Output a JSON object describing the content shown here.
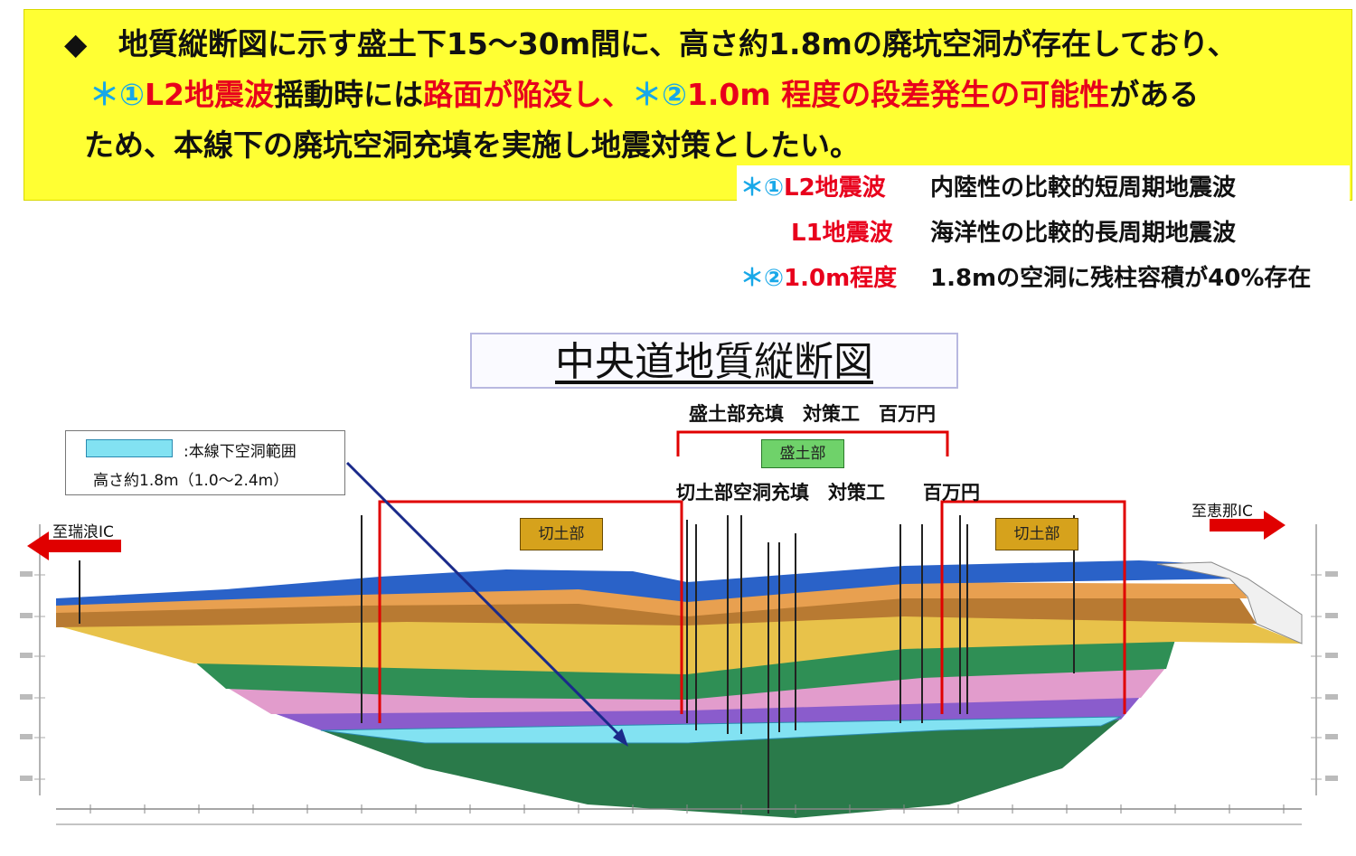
{
  "banner": {
    "bullet": "◆",
    "line1": "地質縦断図に示す盛土下15～30m間に、高さ約1.8mの廃坑空洞が存在しており、",
    "line2_mark1": "＊①",
    "line2_l2": "L2地震波",
    "line2_text1": "揺動時には",
    "line2_red1": "路面が陥没し、",
    "line2_mark2": "＊②",
    "line2_red2": "1.0m 程度の段差発生の可能性",
    "line2_text2": "がある",
    "line3": "ため、本線下の廃坑空洞充填を実施し地震対策としたい。"
  },
  "notes": {
    "row1_mark": "＊①",
    "row1_term": "L2地震波",
    "row1_desc": "内陸性の比較的短周期地震波",
    "row2_term": "L1地震波",
    "row2_desc": "海洋性の比較的長周期地震波",
    "row3_mark": "＊②",
    "row3_term": "1.0m程度",
    "row3_desc": "1.8mの空洞に残柱容積が40%存在"
  },
  "diagram": {
    "title": "中央道地質縦断図",
    "fill_label": "盛土部充填　対策工　百万円",
    "embankment_tag": "盛土部",
    "cut_fill_label": "切土部空洞充填　対策工　　百万円",
    "cut_left_tag": "切土部",
    "cut_right_tag": "切土部",
    "legend_label": ":本線下空洞範囲",
    "legend_height": "高さ約1.8m（1.0～2.4m）",
    "to_left": "至瑞浪IC",
    "to_right": "至恵那IC"
  },
  "colors": {
    "banner": "#ffff33",
    "emphasis_red": "#e8001c",
    "asterisk_cyan": "#18a8e8",
    "frame_red": "#e00000",
    "cavity": "#7fe0f0",
    "arrow_navy": "#1a2a8a",
    "layer_blue": "#2a62c8",
    "layer_brown": "#b87830",
    "layer_yellow": "#e8c048",
    "layer_green": "#2a8a50",
    "layer_pink": "#e098c8",
    "layer_purple": "#8858c8",
    "layer_dark_green": "#2a7a4a"
  }
}
